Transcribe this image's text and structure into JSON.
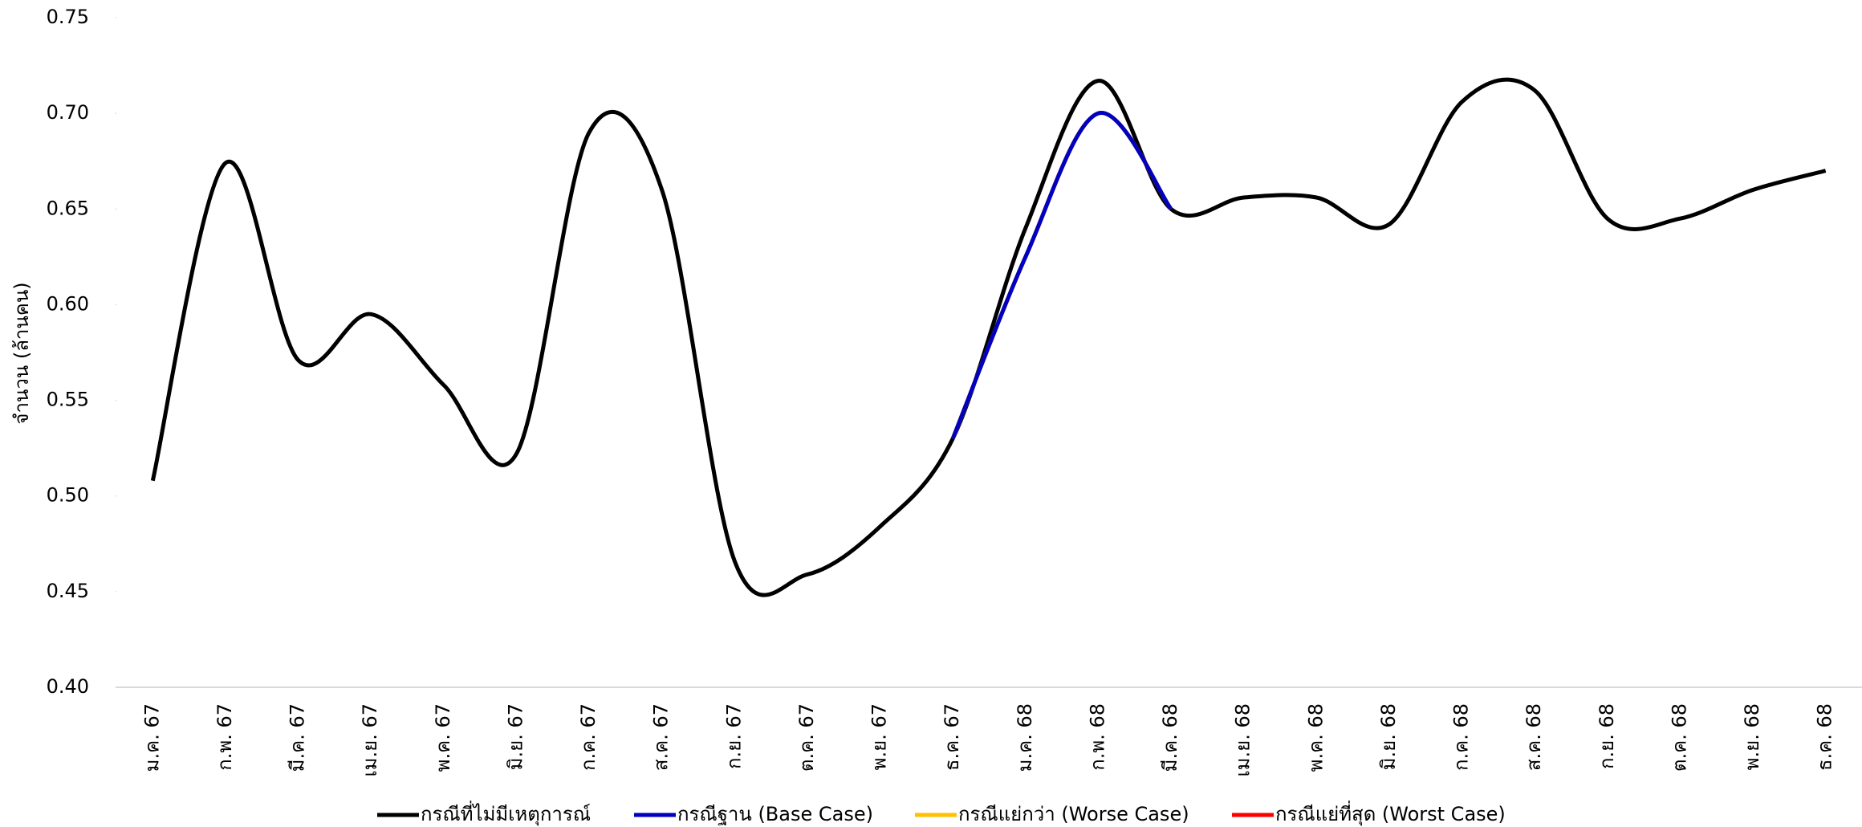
{
  "chart_data": {
    "type": "line",
    "y_label": "จำนวน (ล้านคน)",
    "categories": [
      "ม.ค. 67",
      "ก.พ. 67",
      "มี.ค. 67",
      "เม.ย. 67",
      "พ.ค. 67",
      "มิ.ย. 67",
      "ก.ค. 67",
      "ส.ค. 67",
      "ก.ย. 67",
      "ต.ค. 67",
      "พ.ย. 67",
      "ธ.ค. 67",
      "ม.ค. 68",
      "ก.พ. 68",
      "มี.ค. 68",
      "เม.ย. 68",
      "พ.ค. 68",
      "มิ.ย. 68",
      "ก.ค. 68",
      "ส.ค. 68",
      "ก.ย. 68",
      "ต.ค. 68",
      "พ.ย. 68",
      "ธ.ค. 68"
    ],
    "series": [
      {
        "name": "กรณีที่ไม่มีเหตุการณ์",
        "color": "#000000",
        "values": [
          0.508,
          0.674,
          0.571,
          0.595,
          0.558,
          0.522,
          0.69,
          0.66,
          0.466,
          0.459,
          0.484,
          0.53,
          0.64,
          0.717,
          0.65,
          0.656,
          0.656,
          0.642,
          0.706,
          0.712,
          0.645,
          0.645,
          0.66,
          0.67
        ]
      },
      {
        "name": "กรณีฐาน (Base Case)",
        "color": "#0000c0",
        "values": [
          null,
          null,
          null,
          null,
          null,
          null,
          null,
          null,
          null,
          null,
          null,
          0.53,
          0.625,
          0.7,
          0.65,
          null,
          null,
          null,
          null,
          null,
          null,
          null,
          null,
          null
        ]
      },
      {
        "name": "กรณีแย่กว่า (Worse Case)",
        "color": "#ffc000",
        "values": [
          null,
          null,
          null,
          null,
          null,
          null,
          null,
          null,
          null,
          null,
          null,
          0.53,
          0.625,
          0.7,
          0.65,
          null,
          null,
          null,
          null,
          null,
          null,
          null,
          null,
          null
        ]
      },
      {
        "name": "กรณีแย่ที่สุด (Worst Case)",
        "color": "#ff0000",
        "values": [
          null,
          null,
          null,
          null,
          null,
          null,
          null,
          null,
          null,
          null,
          null,
          0.53,
          0.625,
          0.7,
          0.65,
          null,
          null,
          null,
          null,
          null,
          null,
          null,
          null,
          null
        ]
      }
    ],
    "ylim": [
      0.4,
      0.75
    ],
    "yticks": [
      {
        "value": 0.4,
        "label": "0.40"
      },
      0.45,
      {
        "value": 0.5,
        "label": "0.50"
      },
      0.55,
      {
        "value": 0.6,
        "label": "0.60"
      },
      0.65,
      {
        "value": 0.7,
        "label": "0.70"
      },
      0.75
    ],
    "grid": false,
    "legend": "bottom"
  }
}
